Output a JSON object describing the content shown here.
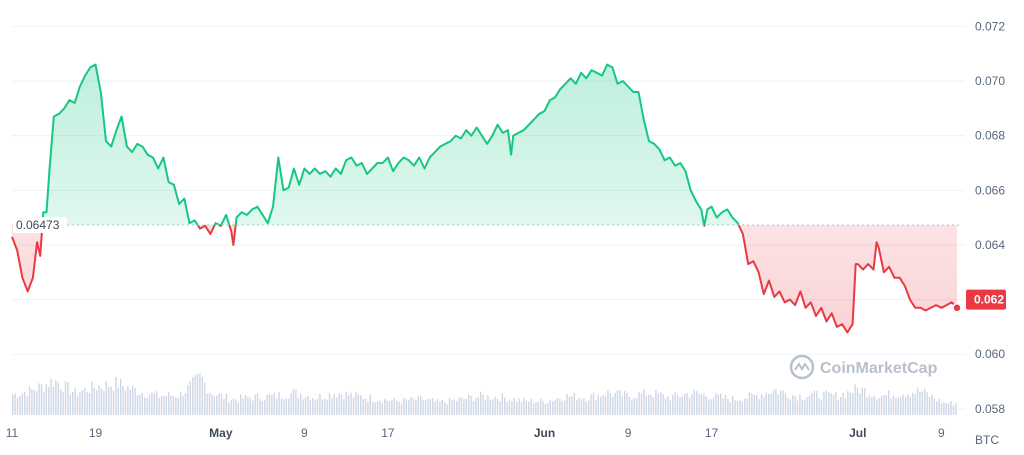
{
  "chart_data": {
    "type": "area",
    "unit": "BTC",
    "y_ticks": [
      "0.058",
      "0.060",
      "0.062",
      "0.064",
      "0.066",
      "0.068",
      "0.070",
      "0.072"
    ],
    "ylim": [
      0.0573,
      0.0726
    ],
    "x_ticks": [
      {
        "label": "11",
        "day": 0,
        "bold": false
      },
      {
        "label": "19",
        "day": 8,
        "bold": false
      },
      {
        "label": "May",
        "day": 20,
        "bold": true
      },
      {
        "label": "9",
        "day": 28,
        "bold": false
      },
      {
        "label": "17",
        "day": 36,
        "bold": false
      },
      {
        "label": "Jun",
        "day": 51,
        "bold": true
      },
      {
        "label": "9",
        "day": 59,
        "bold": false
      },
      {
        "label": "17",
        "day": 67,
        "bold": false
      },
      {
        "label": "Jul",
        "day": 81,
        "bold": true
      },
      {
        "label": "9",
        "day": 89,
        "bold": false
      }
    ],
    "xlim": [
      0,
      90.5
    ],
    "reference": {
      "value": 0.06473,
      "label": "0.06473"
    },
    "current": {
      "value": 0.062,
      "label": "0.062"
    },
    "colors": {
      "up": "#16c784",
      "down": "#ea3943",
      "volume": "#cfd6e4"
    },
    "watermark": "CoinMarketCap",
    "price": [
      [
        0,
        0.0643
      ],
      [
        0.5,
        0.0638
      ],
      [
        1,
        0.0628
      ],
      [
        1.5,
        0.0623
      ],
      [
        2,
        0.0628
      ],
      [
        2.4,
        0.0641
      ],
      [
        2.7,
        0.0636
      ],
      [
        3,
        0.0652
      ],
      [
        3.3,
        0.0652
      ],
      [
        3.6,
        0.0668
      ],
      [
        4,
        0.0687
      ],
      [
        4.5,
        0.0688
      ],
      [
        5,
        0.069
      ],
      [
        5.5,
        0.0693
      ],
      [
        6,
        0.0692
      ],
      [
        6.5,
        0.0698
      ],
      [
        7,
        0.0702
      ],
      [
        7.5,
        0.0705
      ],
      [
        8,
        0.0706
      ],
      [
        8.5,
        0.0696
      ],
      [
        9,
        0.0678
      ],
      [
        9.5,
        0.0676
      ],
      [
        10,
        0.0682
      ],
      [
        10.5,
        0.0687
      ],
      [
        11,
        0.0676
      ],
      [
        11.5,
        0.0674
      ],
      [
        12,
        0.0677
      ],
      [
        12.5,
        0.0676
      ],
      [
        13,
        0.0673
      ],
      [
        13.5,
        0.0672
      ],
      [
        14,
        0.0668
      ],
      [
        14.5,
        0.0672
      ],
      [
        15,
        0.0663
      ],
      [
        15.5,
        0.0662
      ],
      [
        16,
        0.0655
      ],
      [
        16.5,
        0.0657
      ],
      [
        17,
        0.0648
      ],
      [
        17.5,
        0.0649
      ],
      [
        18,
        0.0646
      ],
      [
        18.5,
        0.0647
      ],
      [
        19,
        0.0644
      ],
      [
        19.5,
        0.0648
      ],
      [
        20,
        0.0647
      ],
      [
        20.5,
        0.0651
      ],
      [
        21,
        0.0645
      ],
      [
        21.2,
        0.064
      ],
      [
        21.5,
        0.065
      ],
      [
        22,
        0.0652
      ],
      [
        22.5,
        0.0651
      ],
      [
        23,
        0.0653
      ],
      [
        23.5,
        0.0654
      ],
      [
        24,
        0.0651
      ],
      [
        24.5,
        0.0648
      ],
      [
        25,
        0.0654
      ],
      [
        25.5,
        0.0672
      ],
      [
        26,
        0.066
      ],
      [
        26.5,
        0.0661
      ],
      [
        27,
        0.0668
      ],
      [
        27.5,
        0.0662
      ],
      [
        28,
        0.0668
      ],
      [
        28.5,
        0.0666
      ],
      [
        29,
        0.0668
      ],
      [
        29.5,
        0.0666
      ],
      [
        30,
        0.0667
      ],
      [
        30.5,
        0.0665
      ],
      [
        31,
        0.0668
      ],
      [
        31.5,
        0.0666
      ],
      [
        32,
        0.0671
      ],
      [
        32.5,
        0.0672
      ],
      [
        33,
        0.0669
      ],
      [
        33.5,
        0.067
      ],
      [
        34,
        0.0666
      ],
      [
        34.5,
        0.0668
      ],
      [
        35,
        0.067
      ],
      [
        35.5,
        0.067
      ],
      [
        36,
        0.0672
      ],
      [
        36.5,
        0.0667
      ],
      [
        37,
        0.067
      ],
      [
        37.5,
        0.0672
      ],
      [
        38,
        0.0671
      ],
      [
        38.5,
        0.0669
      ],
      [
        39,
        0.0672
      ],
      [
        39.5,
        0.0668
      ],
      [
        40,
        0.0672
      ],
      [
        40.5,
        0.0674
      ],
      [
        41,
        0.0676
      ],
      [
        41.5,
        0.0677
      ],
      [
        42,
        0.0678
      ],
      [
        42.5,
        0.068
      ],
      [
        43,
        0.0679
      ],
      [
        43.5,
        0.0682
      ],
      [
        44,
        0.068
      ],
      [
        44.5,
        0.0683
      ],
      [
        45,
        0.068
      ],
      [
        45.5,
        0.0677
      ],
      [
        46,
        0.068
      ],
      [
        46.5,
        0.0684
      ],
      [
        47,
        0.0681
      ],
      [
        47.5,
        0.0682
      ],
      [
        47.8,
        0.0673
      ],
      [
        48,
        0.068
      ],
      [
        48.5,
        0.0681
      ],
      [
        49,
        0.0682
      ],
      [
        49.5,
        0.0684
      ],
      [
        50,
        0.0686
      ],
      [
        50.5,
        0.0688
      ],
      [
        51,
        0.0689
      ],
      [
        51.5,
        0.0693
      ],
      [
        52,
        0.0694
      ],
      [
        52.5,
        0.0697
      ],
      [
        53,
        0.0699
      ],
      [
        53.5,
        0.0701
      ],
      [
        54,
        0.0699
      ],
      [
        54.5,
        0.0703
      ],
      [
        55,
        0.0701
      ],
      [
        55.5,
        0.0704
      ],
      [
        56,
        0.0703
      ],
      [
        56.5,
        0.0702
      ],
      [
        57,
        0.0706
      ],
      [
        57.5,
        0.0705
      ],
      [
        58,
        0.0699
      ],
      [
        58.5,
        0.07
      ],
      [
        59,
        0.0698
      ],
      [
        59.5,
        0.0696
      ],
      [
        60,
        0.0696
      ],
      [
        60.5,
        0.0686
      ],
      [
        61,
        0.0678
      ],
      [
        61.5,
        0.0677
      ],
      [
        62,
        0.0675
      ],
      [
        62.5,
        0.0671
      ],
      [
        63,
        0.0672
      ],
      [
        63.5,
        0.0669
      ],
      [
        64,
        0.067
      ],
      [
        64.5,
        0.0667
      ],
      [
        65,
        0.066
      ],
      [
        65.5,
        0.0656
      ],
      [
        66,
        0.0653
      ],
      [
        66.3,
        0.0647
      ],
      [
        66.6,
        0.0653
      ],
      [
        67,
        0.0654
      ],
      [
        67.5,
        0.065
      ],
      [
        68,
        0.0652
      ],
      [
        68.5,
        0.0653
      ],
      [
        69,
        0.065
      ],
      [
        69.5,
        0.0648
      ],
      [
        70,
        0.0644
      ],
      [
        70.5,
        0.0633
      ],
      [
        71,
        0.0634
      ],
      [
        71.5,
        0.063
      ],
      [
        72,
        0.0622
      ],
      [
        72.5,
        0.0627
      ],
      [
        73,
        0.0621
      ],
      [
        73.5,
        0.0623
      ],
      [
        74,
        0.0619
      ],
      [
        74.5,
        0.062
      ],
      [
        75,
        0.0618
      ],
      [
        75.5,
        0.0623
      ],
      [
        76,
        0.0617
      ],
      [
        76.5,
        0.0619
      ],
      [
        77,
        0.0614
      ],
      [
        77.5,
        0.0617
      ],
      [
        78,
        0.0612
      ],
      [
        78.5,
        0.0615
      ],
      [
        79,
        0.061
      ],
      [
        79.5,
        0.0611
      ],
      [
        80,
        0.0608
      ],
      [
        80.5,
        0.0611
      ],
      [
        80.8,
        0.0633
      ],
      [
        81,
        0.0633
      ],
      [
        81.5,
        0.0631
      ],
      [
        82,
        0.0633
      ],
      [
        82.5,
        0.0631
      ],
      [
        82.8,
        0.0641
      ],
      [
        83,
        0.0639
      ],
      [
        83.5,
        0.063
      ],
      [
        84,
        0.0632
      ],
      [
        84.5,
        0.0628
      ],
      [
        85,
        0.0628
      ],
      [
        85.5,
        0.0625
      ],
      [
        86,
        0.062
      ],
      [
        86.5,
        0.0617
      ],
      [
        87,
        0.0617
      ],
      [
        87.5,
        0.0616
      ],
      [
        88,
        0.0617
      ],
      [
        88.5,
        0.0618
      ],
      [
        89,
        0.0617
      ],
      [
        89.5,
        0.0618
      ],
      [
        90,
        0.0619
      ],
      [
        90.5,
        0.0617
      ]
    ],
    "volume": [
      [
        0,
        0.32
      ],
      [
        2,
        0.4
      ],
      [
        4,
        0.55
      ],
      [
        6,
        0.35
      ],
      [
        8,
        0.45
      ],
      [
        10,
        0.5
      ],
      [
        12,
        0.38
      ],
      [
        14,
        0.3
      ],
      [
        16,
        0.32
      ],
      [
        17,
        0.45
      ],
      [
        18,
        0.6
      ],
      [
        19,
        0.35
      ],
      [
        21,
        0.25
      ],
      [
        23,
        0.28
      ],
      [
        25,
        0.3
      ],
      [
        27,
        0.35
      ],
      [
        29,
        0.28
      ],
      [
        31,
        0.35
      ],
      [
        33,
        0.3
      ],
      [
        35,
        0.25
      ],
      [
        37,
        0.22
      ],
      [
        39,
        0.25
      ],
      [
        41,
        0.2
      ],
      [
        43,
        0.25
      ],
      [
        45,
        0.3
      ],
      [
        47,
        0.28
      ],
      [
        49,
        0.22
      ],
      [
        51,
        0.22
      ],
      [
        53,
        0.3
      ],
      [
        55,
        0.28
      ],
      [
        57,
        0.35
      ],
      [
        59,
        0.3
      ],
      [
        61,
        0.35
      ],
      [
        63,
        0.28
      ],
      [
        65,
        0.35
      ],
      [
        67,
        0.3
      ],
      [
        69,
        0.25
      ],
      [
        71,
        0.3
      ],
      [
        73,
        0.4
      ],
      [
        75,
        0.3
      ],
      [
        77,
        0.32
      ],
      [
        79,
        0.3
      ],
      [
        81,
        0.42
      ],
      [
        83,
        0.3
      ],
      [
        85,
        0.35
      ],
      [
        87,
        0.38
      ],
      [
        89,
        0.2
      ],
      [
        90.5,
        0.18
      ]
    ]
  }
}
